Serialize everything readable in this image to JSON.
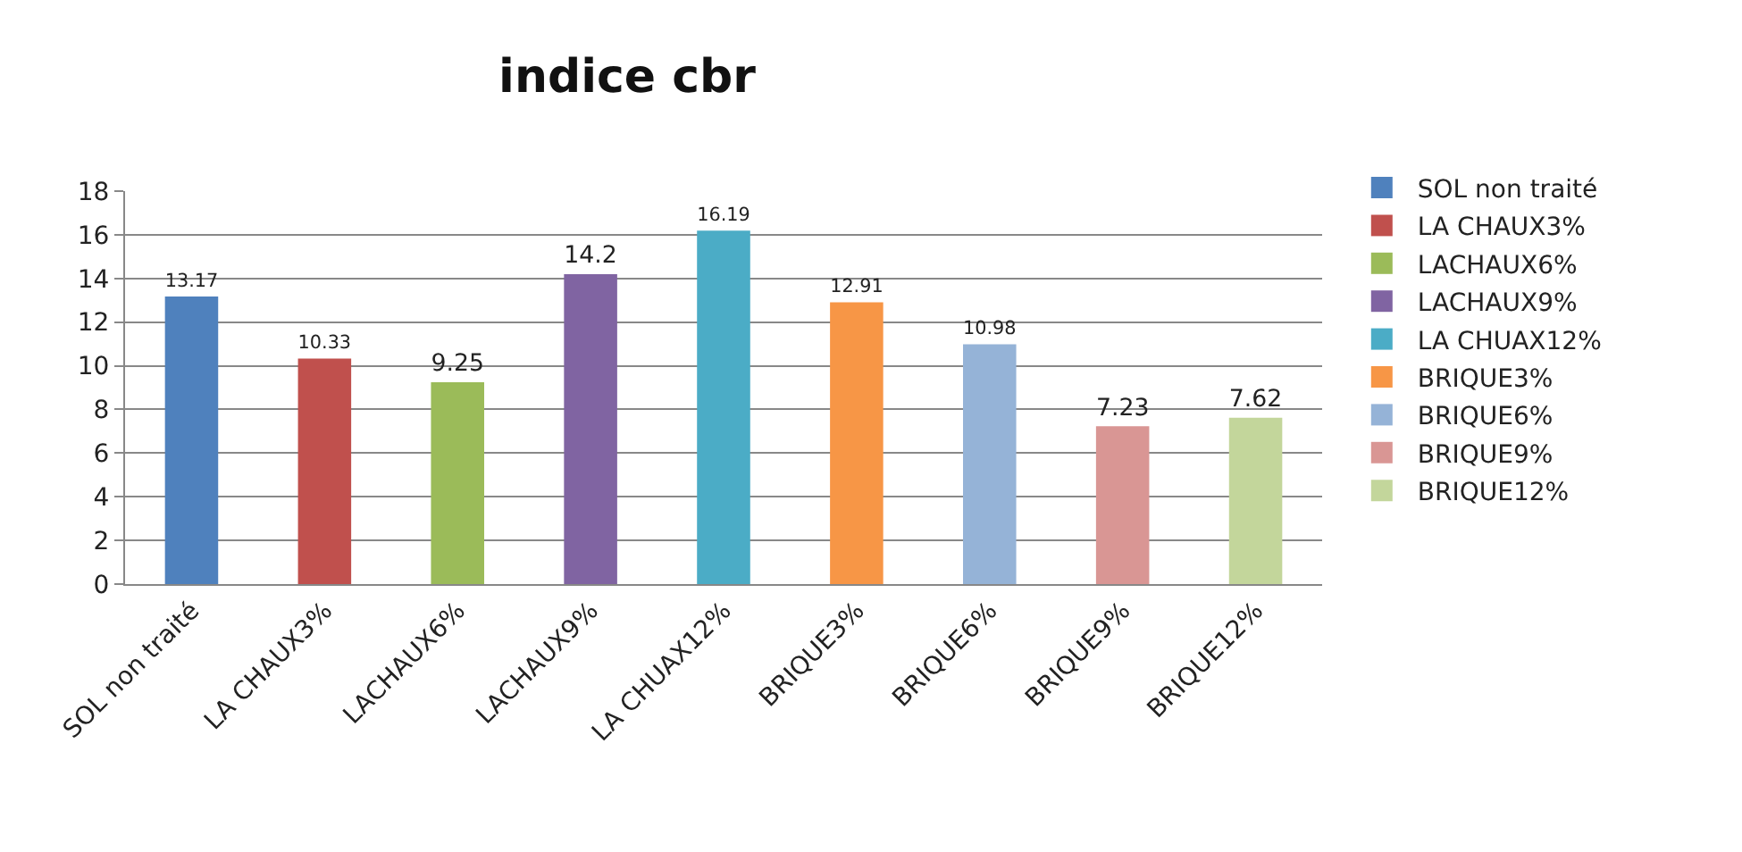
{
  "chart_data": {
    "type": "bar",
    "title": "indice cbr",
    "categories": [
      "SOL non traité",
      "LA CHAUX3%",
      "LACHAUX6%",
      "LACHAUX9%",
      "LA CHUAX12%",
      "BRIQUE3%",
      "BRIQUE6%",
      "BRIQUE9%",
      "BRIQUE12%"
    ],
    "series": [
      {
        "name": "SOL non traité",
        "color": "#4f81bd",
        "values": [
          13.17,
          null,
          null,
          null,
          null,
          null,
          null,
          null,
          null
        ]
      },
      {
        "name": "LA CHAUX3%",
        "color": "#c0504d",
        "values": [
          null,
          10.33,
          null,
          null,
          null,
          null,
          null,
          null,
          null
        ]
      },
      {
        "name": "LACHAUX6%",
        "color": "#9bbb59",
        "values": [
          null,
          null,
          9.25,
          null,
          null,
          null,
          null,
          null,
          null
        ]
      },
      {
        "name": "LACHAUX9%",
        "color": "#8064a2",
        "values": [
          null,
          null,
          null,
          14.2,
          null,
          null,
          null,
          null,
          null
        ]
      },
      {
        "name": "LA CHUAX12%",
        "color": "#4bacc6",
        "values": [
          null,
          null,
          null,
          null,
          16.19,
          null,
          null,
          null,
          null
        ]
      },
      {
        "name": "BRIQUE3%",
        "color": "#f79646",
        "values": [
          null,
          null,
          null,
          null,
          null,
          12.91,
          null,
          null,
          null
        ]
      },
      {
        "name": "BRIQUE6%",
        "color": "#95b3d7",
        "values": [
          null,
          null,
          null,
          null,
          null,
          null,
          10.98,
          null,
          null
        ]
      },
      {
        "name": "BRIQUE9%",
        "color": "#d99694",
        "values": [
          null,
          null,
          null,
          null,
          null,
          null,
          null,
          7.23,
          null
        ]
      },
      {
        "name": "BRIQUE12%",
        "color": "#c3d69b",
        "values": [
          null,
          null,
          null,
          null,
          null,
          null,
          null,
          null,
          7.62
        ]
      }
    ],
    "ylim": [
      0,
      18
    ],
    "yticks": [
      0,
      2,
      4,
      6,
      8,
      10,
      12,
      14,
      16,
      18
    ],
    "grid": "y",
    "legend": "right",
    "data_labels": true
  }
}
